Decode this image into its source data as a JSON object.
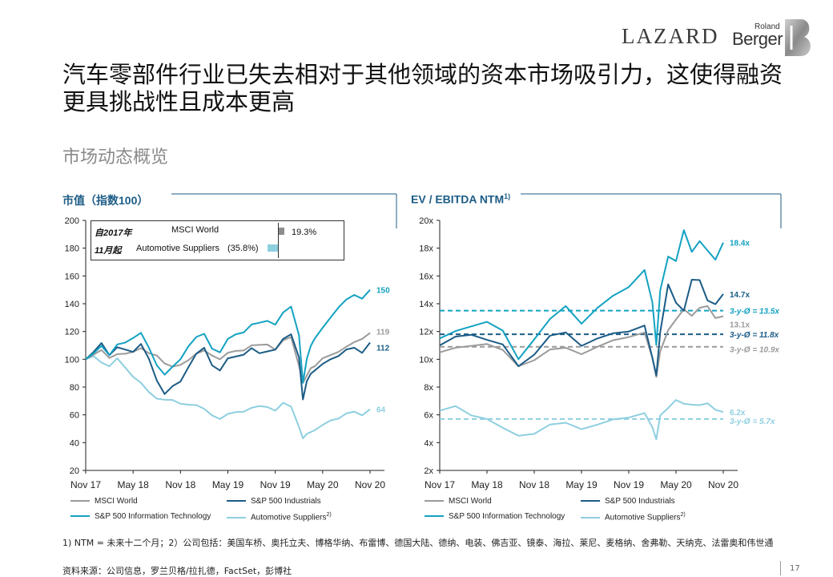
{
  "logos": {
    "lazard": "LAZARD",
    "rb_small": "Roland",
    "rb_large": "Berger"
  },
  "title": "汽车零部件行业已失去相对于其他领域的资本市场吸引力，这使得融资更具挑战性且成本更高",
  "subtitle": "市场动态概览",
  "colors": {
    "msci": "#9b9b9b",
    "sp_ind": "#1c5c86",
    "sp_it": "#14a2c2",
    "auto": "#8ecfe0",
    "title_blue": "#1c5c86"
  },
  "legend": [
    {
      "key": "msci",
      "label": "MSCI World"
    },
    {
      "key": "sp_ind",
      "label": "S&P 500 Industrials"
    },
    {
      "key": "sp_it",
      "label": "S&P 500 Information Technology"
    },
    {
      "key": "auto",
      "label": "Automotive Suppliers",
      "sup": "2)"
    }
  ],
  "left_inset": {
    "line1_prefix": "自2017年",
    "line2_prefix": "11月起",
    "row1_label": "MSCI World",
    "row1_value": "19.3%",
    "row1_value_num": 19.3,
    "row2_label": "Automotive Suppliers",
    "row2_value": "(35.8%)",
    "row2_value_num": -35.8
  },
  "footnote": "1) NTM = 未来十二个月；2）公司包括：美国车桥、奥托立夫、博格华纳、布雷博、德国大陆、德纳、电装、佛吉亚、镜泰、海拉、莱尼、麦格纳、舍弗勒、天纳克、法雷奥和伟世通",
  "source": "资料来源：公司信息，罗兰贝格/拉扎德，FactSet，彭博社",
  "page_number": "17",
  "chart_data": [
    {
      "type": "line",
      "title": "市值（指数100）",
      "title_sup": "",
      "y_tick_labels": [
        "20",
        "40",
        "60",
        "80",
        "100",
        "120",
        "140",
        "160",
        "180",
        "200"
      ],
      "ylim": [
        20,
        200
      ],
      "x_tick_labels": [
        "Nov 17",
        "May 18",
        "Nov 18",
        "May 19",
        "Nov 19",
        "May 20",
        "Nov 20"
      ],
      "xlim": [
        0,
        36
      ],
      "end_labels": [
        {
          "key": "sp_it",
          "text": "150",
          "value": 150
        },
        {
          "key": "msci",
          "text": "119",
          "value": 119
        },
        {
          "key": "sp_ind",
          "text": "112",
          "value": 112
        },
        {
          "key": "auto",
          "text": "64",
          "value": 64
        }
      ],
      "series": [
        {
          "key": "msci",
          "name": "MSCI World",
          "x": [
            0,
            1,
            2,
            3,
            4,
            5,
            6,
            7,
            8,
            9,
            10,
            11,
            12,
            13,
            14,
            15,
            16,
            17,
            18,
            19,
            20,
            21,
            22,
            23,
            24,
            25,
            26,
            27,
            27.5,
            28,
            28.5,
            29,
            30,
            31,
            32,
            33,
            34,
            35,
            36
          ],
          "values": [
            100,
            103,
            107,
            102,
            103,
            104,
            106,
            107,
            104,
            103,
            98,
            94,
            96,
            100,
            103,
            106,
            103,
            101,
            104,
            106,
            107,
            109,
            110,
            111,
            108,
            113,
            116,
            96,
            82,
            88,
            94,
            96,
            100,
            103,
            106,
            108,
            112,
            115,
            119
          ]
        },
        {
          "key": "sp_ind",
          "name": "S&P 500 Industrials",
          "x": [
            0,
            1,
            2,
            3,
            4,
            5,
            6,
            7,
            8,
            9,
            10,
            11,
            12,
            13,
            14,
            15,
            16,
            17,
            18,
            19,
            20,
            21,
            22,
            23,
            24,
            25,
            26,
            27,
            27.5,
            28,
            28.5,
            29,
            30,
            31,
            32,
            33,
            34,
            35,
            36
          ],
          "values": [
            100,
            105,
            112,
            104,
            108,
            107,
            106,
            110,
            100,
            85,
            76,
            80,
            84,
            95,
            103,
            108,
            96,
            93,
            100,
            102,
            104,
            107,
            104,
            106,
            108,
            114,
            118,
            102,
            70,
            84,
            90,
            93,
            96,
            100,
            103,
            106,
            108,
            105,
            112
          ]
        },
        {
          "key": "sp_it",
          "name": "S&P 500 Information Technology",
          "x": [
            0,
            1,
            2,
            3,
            4,
            5,
            6,
            7,
            8,
            9,
            10,
            11,
            12,
            13,
            14,
            15,
            16,
            17,
            18,
            19,
            20,
            21,
            22,
            23,
            24,
            25,
            26,
            27,
            27.5,
            28,
            28.5,
            29,
            30,
            31,
            32,
            33,
            34,
            35,
            36
          ],
          "values": [
            100,
            104,
            110,
            104,
            110,
            112,
            116,
            118,
            108,
            96,
            90,
            94,
            100,
            110,
            115,
            118,
            108,
            106,
            114,
            118,
            120,
            124,
            126,
            128,
            126,
            133,
            138,
            118,
            82,
            100,
            110,
            116,
            122,
            130,
            138,
            142,
            146,
            144,
            150
          ]
        },
        {
          "key": "auto",
          "name": "Automotive Suppliers",
          "x": [
            0,
            1,
            2,
            3,
            4,
            5,
            6,
            7,
            8,
            9,
            10,
            11,
            12,
            13,
            14,
            15,
            16,
            17,
            18,
            19,
            20,
            21,
            22,
            23,
            24,
            25,
            26,
            27,
            27.5,
            28,
            28.5,
            29,
            30,
            31,
            32,
            33,
            34,
            35,
            36
          ],
          "values": [
            100,
            102,
            98,
            96,
            100,
            94,
            88,
            82,
            76,
            72,
            72,
            70,
            68,
            68,
            66,
            64,
            60,
            58,
            60,
            62,
            63,
            64,
            66,
            66,
            64,
            68,
            66,
            52,
            42,
            46,
            48,
            50,
            52,
            56,
            58,
            60,
            62,
            60,
            64
          ]
        }
      ]
    },
    {
      "type": "line",
      "title": "EV / EBITDA NTM",
      "title_sup": "1)",
      "y_tick_labels": [
        "2x",
        "4x",
        "6x",
        "8x",
        "10x",
        "12x",
        "14x",
        "16x",
        "18x",
        "20x"
      ],
      "ylim": [
        2,
        20
      ],
      "x_tick_labels": [
        "Nov 17",
        "May 18",
        "Nov 18",
        "May 19",
        "Nov 19",
        "May 20",
        "Nov 20"
      ],
      "xlim": [
        0,
        36
      ],
      "end_labels": [
        {
          "key": "sp_it",
          "text": "18.4x",
          "value": 18.4
        },
        {
          "key": "sp_ind",
          "text": "14.7x",
          "value": 14.7
        },
        {
          "key": "msci",
          "text": "13.1x",
          "value": 13.1
        },
        {
          "key": "auto",
          "text": "6.2x",
          "value": 6.2
        }
      ],
      "reference_lines": [
        {
          "key": "sp_it",
          "value": 13.5,
          "label": "3-y-Ø = 13.5x"
        },
        {
          "key": "sp_ind",
          "value": 11.8,
          "label": "3-y-Ø = 11.8x"
        },
        {
          "key": "msci",
          "value": 10.9,
          "label": "3-y-Ø = 10.9x"
        },
        {
          "key": "auto",
          "value": 5.7,
          "label": "3-y-Ø = 5.7x"
        }
      ],
      "series": [
        {
          "key": "msci",
          "name": "MSCI World",
          "x": [
            0,
            2,
            4,
            6,
            8,
            10,
            12,
            14,
            16,
            18,
            20,
            22,
            24,
            26,
            27,
            27.5,
            28,
            29,
            30,
            31,
            32,
            33,
            34,
            35,
            36
          ],
          "values": [
            10.5,
            10.8,
            11.0,
            11.2,
            10.6,
            9.5,
            10.0,
            10.6,
            10.8,
            10.4,
            11.0,
            11.3,
            11.6,
            12.0,
            10.0,
            8.7,
            10.6,
            12.2,
            12.8,
            13.6,
            13.2,
            13.6,
            13.8,
            13.0,
            13.1
          ]
        },
        {
          "key": "sp_ind",
          "name": "S&P 500 Industrials",
          "x": [
            0,
            2,
            4,
            6,
            8,
            10,
            12,
            14,
            16,
            18,
            20,
            22,
            24,
            26,
            27,
            27.5,
            28,
            29,
            30,
            31,
            32,
            33,
            34,
            35,
            36
          ],
          "values": [
            11.0,
            11.6,
            11.8,
            11.5,
            11.0,
            9.5,
            10.4,
            11.6,
            11.9,
            11.0,
            11.6,
            11.8,
            12.0,
            12.5,
            10.0,
            8.8,
            12.0,
            15.5,
            14.0,
            13.5,
            15.8,
            15.6,
            14.2,
            14.0,
            14.7
          ]
        },
        {
          "key": "sp_it",
          "name": "S&P 500 Information Technology",
          "x": [
            0,
            2,
            4,
            6,
            8,
            10,
            12,
            14,
            16,
            18,
            20,
            22,
            24,
            26,
            27,
            27.5,
            28,
            29,
            30,
            31,
            32,
            33,
            34,
            35,
            36
          ],
          "values": [
            11.5,
            12.0,
            12.4,
            12.8,
            12.0,
            10.0,
            11.5,
            12.8,
            13.8,
            12.6,
            13.8,
            14.5,
            15.2,
            16.5,
            14.0,
            11.0,
            15.0,
            17.5,
            17.0,
            19.3,
            17.8,
            18.4,
            17.8,
            17.2,
            18.4
          ]
        },
        {
          "key": "auto",
          "name": "Automotive Suppliers",
          "x": [
            0,
            2,
            4,
            6,
            8,
            10,
            12,
            14,
            16,
            18,
            20,
            22,
            24,
            26,
            27,
            27.5,
            28,
            29,
            30,
            31,
            32,
            33,
            34,
            35,
            36
          ],
          "values": [
            6.3,
            6.6,
            6.0,
            5.8,
            5.0,
            4.5,
            4.7,
            5.2,
            5.4,
            5.0,
            5.4,
            5.6,
            5.8,
            6.2,
            5.0,
            4.2,
            6.0,
            6.6,
            7.0,
            6.8,
            6.8,
            6.6,
            6.8,
            6.4,
            6.2
          ]
        }
      ]
    }
  ]
}
